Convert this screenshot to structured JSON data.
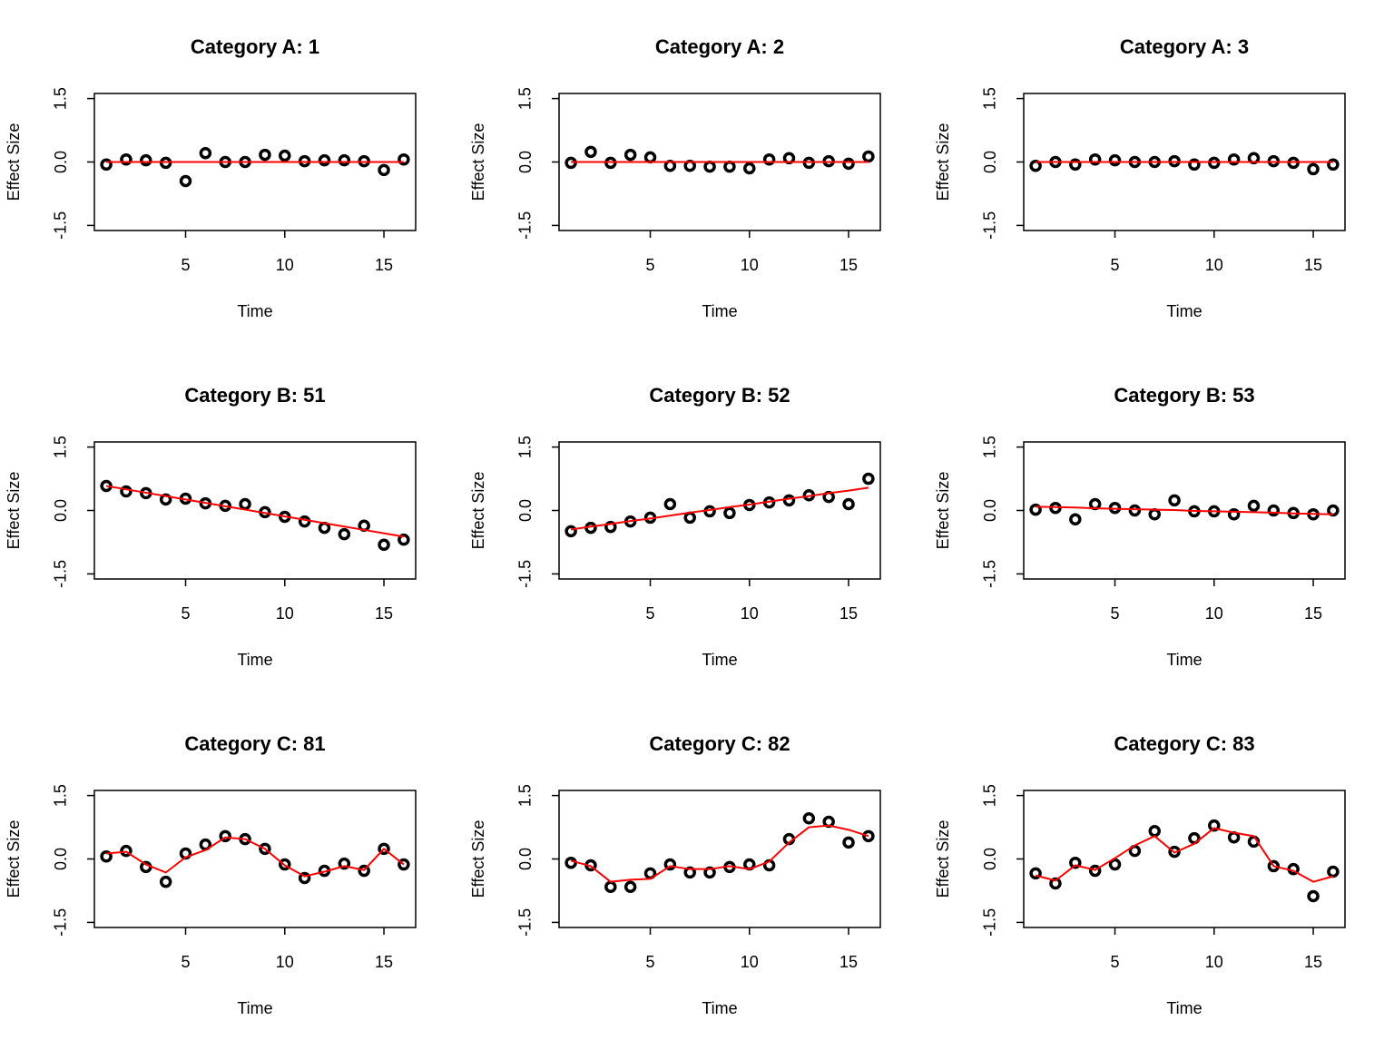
{
  "chart_data": [
    {
      "type": "line",
      "title": "Category A:  1",
      "xlabel": "Time",
      "ylabel": "Effect Size",
      "x": [
        1,
        2,
        3,
        4,
        5,
        6,
        7,
        8,
        9,
        10,
        11,
        12,
        13,
        14,
        15,
        16
      ],
      "xlim": [
        0.4,
        16.6
      ],
      "xticks": [
        5,
        10,
        15
      ],
      "ylim": [
        -1.62,
        1.62
      ],
      "yticks": [
        -1.5,
        {
          "value": 0,
          "label": "0.0"
        },
        1.5
      ],
      "series": [
        {
          "mode": "markers",
          "color": "#000000",
          "values": [
            -0.06,
            0.06,
            0.04,
            -0.02,
            -0.45,
            0.21,
            0,
            0,
            0.17,
            0.15,
            0.02,
            0.04,
            0.04,
            0.02,
            -0.19,
            0.06
          ]
        },
        {
          "mode": "line",
          "color": "#ff0000",
          "values": [
            0,
            0,
            0,
            0,
            0,
            0,
            0,
            0,
            0,
            0,
            0,
            0,
            0,
            0,
            0,
            0
          ]
        }
      ]
    },
    {
      "type": "line",
      "title": "Category A:  2",
      "xlabel": "Time",
      "ylabel": "Effect Size",
      "x": [
        1,
        2,
        3,
        4,
        5,
        6,
        7,
        8,
        9,
        10,
        11,
        12,
        13,
        14,
        15,
        16
      ],
      "xlim": [
        0.4,
        16.6
      ],
      "xticks": [
        5,
        10,
        15
      ],
      "ylim": [
        -1.62,
        1.62
      ],
      "yticks": [
        -1.5,
        {
          "value": 0,
          "label": "0.0"
        },
        1.5
      ],
      "series": [
        {
          "mode": "markers",
          "color": "#000000",
          "values": [
            -0.02,
            0.24,
            -0.02,
            0.17,
            0.11,
            -0.09,
            -0.09,
            -0.11,
            -0.11,
            -0.15,
            0.06,
            0.09,
            -0.02,
            0.02,
            -0.04,
            0.13
          ]
        },
        {
          "mode": "line",
          "color": "#ff0000",
          "values": [
            0,
            0,
            0,
            0,
            0,
            0,
            0,
            0,
            0,
            0,
            0,
            0,
            0,
            0,
            0,
            0
          ]
        }
      ]
    },
    {
      "type": "line",
      "title": "Category A:  3",
      "xlabel": "Time",
      "ylabel": "Effect Size",
      "x": [
        1,
        2,
        3,
        4,
        5,
        6,
        7,
        8,
        9,
        10,
        11,
        12,
        13,
        14,
        15,
        16
      ],
      "xlim": [
        0.4,
        16.6
      ],
      "xticks": [
        5,
        10,
        15
      ],
      "ylim": [
        -1.62,
        1.62
      ],
      "yticks": [
        -1.5,
        {
          "value": 0,
          "label": "0.0"
        },
        1.5
      ],
      "series": [
        {
          "mode": "markers",
          "color": "#000000",
          "values": [
            -0.09,
            0,
            -0.06,
            0.06,
            0.04,
            0,
            0,
            0.02,
            -0.06,
            -0.02,
            0.06,
            0.09,
            0.02,
            -0.02,
            -0.17,
            -0.06
          ]
        },
        {
          "mode": "line",
          "color": "#ff0000",
          "values": [
            0,
            0,
            0,
            0,
            0,
            0,
            0,
            0,
            0,
            0,
            0,
            0,
            0,
            0,
            0,
            0
          ]
        }
      ]
    },
    {
      "type": "line",
      "title": "Category B:  51",
      "xlabel": "Time",
      "ylabel": "Effect Size",
      "x": [
        1,
        2,
        3,
        4,
        5,
        6,
        7,
        8,
        9,
        10,
        11,
        12,
        13,
        14,
        15,
        16
      ],
      "xlim": [
        0.4,
        16.6
      ],
      "xticks": [
        5,
        10,
        15
      ],
      "ylim": [
        -1.62,
        1.62
      ],
      "yticks": [
        -1.5,
        {
          "value": 0,
          "label": "0.0"
        },
        1.5
      ],
      "series": [
        {
          "mode": "markers",
          "color": "#000000",
          "values": [
            0.58,
            0.45,
            0.41,
            0.26,
            0.28,
            0.17,
            0.11,
            0.15,
            -0.04,
            -0.15,
            -0.26,
            -0.41,
            -0.56,
            -0.36,
            -0.81,
            -0.69
          ]
        },
        {
          "mode": "line",
          "color": "#ff0000",
          "values": [
            0.58,
            0.5,
            0.42,
            0.34,
            0.26,
            0.18,
            0.1,
            0.02,
            -0.06,
            -0.14,
            -0.22,
            -0.3,
            -0.38,
            -0.46,
            -0.54,
            -0.62
          ]
        }
      ]
    },
    {
      "type": "line",
      "title": "Category B:  52",
      "xlabel": "Time",
      "ylabel": "Effect Size",
      "x": [
        1,
        2,
        3,
        4,
        5,
        6,
        7,
        8,
        9,
        10,
        11,
        12,
        13,
        14,
        15,
        16
      ],
      "xlim": [
        0.4,
        16.6
      ],
      "xticks": [
        5,
        10,
        15
      ],
      "ylim": [
        -1.62,
        1.62
      ],
      "yticks": [
        -1.5,
        {
          "value": 0,
          "label": "0.0"
        },
        1.5
      ],
      "series": [
        {
          "mode": "markers",
          "color": "#000000",
          "values": [
            -0.49,
            -0.41,
            -0.39,
            -0.26,
            -0.17,
            0.15,
            -0.17,
            -0.02,
            -0.06,
            0.13,
            0.19,
            0.24,
            0.36,
            0.32,
            0.15,
            0.75
          ]
        },
        {
          "mode": "line",
          "color": "#ff0000",
          "values": [
            -0.45,
            -0.38,
            -0.32,
            -0.25,
            -0.19,
            -0.12,
            -0.05,
            0.01,
            0.08,
            0.14,
            0.21,
            0.28,
            0.34,
            0.41,
            0.47,
            0.54
          ]
        }
      ]
    },
    {
      "type": "line",
      "title": "Category B:  53",
      "xlabel": "Time",
      "ylabel": "Effect Size",
      "x": [
        1,
        2,
        3,
        4,
        5,
        6,
        7,
        8,
        9,
        10,
        11,
        12,
        13,
        14,
        15,
        16
      ],
      "xlim": [
        0.4,
        16.6
      ],
      "xticks": [
        5,
        10,
        15
      ],
      "ylim": [
        -1.62,
        1.62
      ],
      "yticks": [
        -1.5,
        {
          "value": 0,
          "label": "0.0"
        },
        1.5
      ],
      "series": [
        {
          "mode": "markers",
          "color": "#000000",
          "values": [
            0.02,
            0.06,
            -0.21,
            0.15,
            0.06,
            0,
            -0.09,
            0.24,
            -0.02,
            -0.02,
            -0.09,
            0.11,
            0,
            -0.06,
            -0.09,
            0
          ]
        },
        {
          "mode": "line",
          "color": "#ff0000",
          "values": [
            0.09,
            0.08,
            0.07,
            0.05,
            0.04,
            0.03,
            0.02,
            0.01,
            -0.01,
            -0.02,
            -0.03,
            -0.04,
            -0.05,
            -0.07,
            -0.08,
            -0.09
          ]
        }
      ]
    },
    {
      "type": "line",
      "title": "Category C:  81",
      "xlabel": "Time",
      "ylabel": "Effect Size",
      "x": [
        1,
        2,
        3,
        4,
        5,
        6,
        7,
        8,
        9,
        10,
        11,
        12,
        13,
        14,
        15,
        16
      ],
      "xlim": [
        0.4,
        16.6
      ],
      "xticks": [
        5,
        10,
        15
      ],
      "ylim": [
        -1.62,
        1.62
      ],
      "yticks": [
        -1.5,
        {
          "value": 0,
          "label": "0.0"
        },
        1.5
      ],
      "series": [
        {
          "mode": "markers",
          "color": "#000000",
          "values": [
            0.06,
            0.19,
            -0.19,
            -0.54,
            0.13,
            0.34,
            0.54,
            0.47,
            0.24,
            -0.13,
            -0.45,
            -0.28,
            -0.11,
            -0.28,
            0.24,
            -0.13
          ]
        },
        {
          "mode": "line",
          "color": "#ff0000",
          "values": [
            0.13,
            0.17,
            -0.13,
            -0.32,
            0.04,
            0.21,
            0.51,
            0.47,
            0.24,
            -0.15,
            -0.41,
            -0.3,
            -0.17,
            -0.26,
            0.24,
            -0.13
          ]
        }
      ]
    },
    {
      "type": "line",
      "title": "Category C:  82",
      "xlabel": "Time",
      "ylabel": "Effect Size",
      "x": [
        1,
        2,
        3,
        4,
        5,
        6,
        7,
        8,
        9,
        10,
        11,
        12,
        13,
        14,
        15,
        16
      ],
      "xlim": [
        0.4,
        16.6
      ],
      "xticks": [
        5,
        10,
        15
      ],
      "ylim": [
        -1.62,
        1.62
      ],
      "yticks": [
        -1.5,
        {
          "value": 0,
          "label": "0.0"
        },
        1.5
      ],
      "series": [
        {
          "mode": "markers",
          "color": "#000000",
          "values": [
            -0.09,
            -0.15,
            -0.66,
            -0.66,
            -0.34,
            -0.13,
            -0.32,
            -0.32,
            -0.19,
            -0.13,
            -0.15,
            0.47,
            0.96,
            0.88,
            0.39,
            0.54
          ]
        },
        {
          "mode": "line",
          "color": "#ff0000",
          "values": [
            -0.04,
            -0.17,
            -0.54,
            -0.49,
            -0.47,
            -0.17,
            -0.24,
            -0.24,
            -0.17,
            -0.24,
            -0.06,
            0.39,
            0.75,
            0.79,
            0.69,
            0.54
          ]
        }
      ]
    },
    {
      "type": "line",
      "title": "Category C:  83",
      "xlabel": "Time",
      "ylabel": "Effect Size",
      "x": [
        1,
        2,
        3,
        4,
        5,
        6,
        7,
        8,
        9,
        10,
        11,
        12,
        13,
        14,
        15,
        16
      ],
      "xlim": [
        0.4,
        16.6
      ],
      "xticks": [
        5,
        10,
        15
      ],
      "ylim": [
        -1.62,
        1.62
      ],
      "yticks": [
        -1.5,
        {
          "value": 0,
          "label": "0.0"
        },
        1.5
      ],
      "series": [
        {
          "mode": "markers",
          "color": "#000000",
          "values": [
            -0.34,
            -0.58,
            -0.09,
            -0.28,
            -0.13,
            0.19,
            0.66,
            0.17,
            0.49,
            0.79,
            0.51,
            0.41,
            -0.17,
            -0.24,
            -0.88,
            -0.3
          ]
        },
        {
          "mode": "line",
          "color": "#ff0000",
          "values": [
            -0.39,
            -0.51,
            -0.15,
            -0.26,
            0.02,
            0.32,
            0.54,
            0.15,
            0.36,
            0.73,
            0.62,
            0.54,
            -0.17,
            -0.28,
            -0.54,
            -0.41
          ]
        }
      ]
    }
  ]
}
